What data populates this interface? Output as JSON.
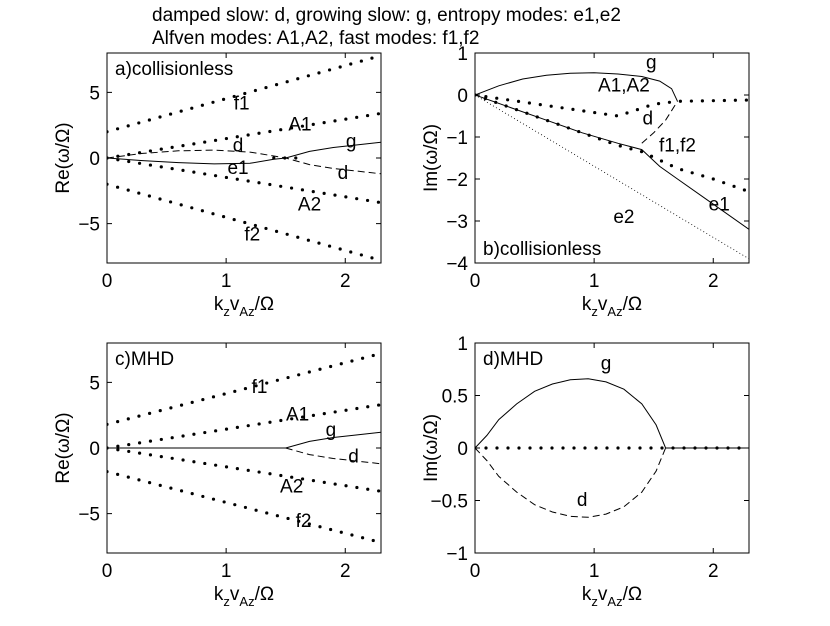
{
  "header": {
    "line1": "damped slow: d, growing slow: g, entropy modes: e1,e2",
    "line2": "Alfven modes: A1,A2, fast modes: f1,f2"
  },
  "chart_data": [
    {
      "type": "line",
      "title": "a)collisionless",
      "xlabel": "k_z v_Az/Ω",
      "ylabel": "Re(ω/Ω)",
      "xlim": [
        0,
        2.3
      ],
      "ylim": [
        -8,
        8
      ],
      "xticks": [
        "0",
        "1",
        "2"
      ],
      "yticks": [
        "5",
        "0",
        "−5"
      ],
      "series": [
        {
          "name": "f1",
          "style": "dotted",
          "x": [
            0,
            2.3
          ],
          "y": [
            2.0,
            7.8
          ]
        },
        {
          "name": "A1",
          "style": "dotted",
          "x": [
            0,
            2.3
          ],
          "y": [
            0.0,
            3.4
          ]
        },
        {
          "name": "A2",
          "style": "dotted",
          "x": [
            0,
            2.3
          ],
          "y": [
            0.0,
            -3.4
          ]
        },
        {
          "name": "f2",
          "style": "dotted",
          "x": [
            0,
            2.3
          ],
          "y": [
            -2.0,
            -7.8
          ]
        },
        {
          "name": "g",
          "style": "solid",
          "x": [
            1.5,
            1.7,
            1.9,
            2.1,
            2.3
          ],
          "y": [
            0.0,
            0.5,
            0.8,
            1.0,
            1.2
          ]
        },
        {
          "name": "d",
          "style": "dashed",
          "x": [
            0,
            0.3,
            0.6,
            0.9,
            1.2,
            1.4,
            1.5,
            1.7,
            1.9,
            2.1,
            2.3
          ],
          "y": [
            0.0,
            0.35,
            0.55,
            0.6,
            0.45,
            0.15,
            0.0,
            -0.5,
            -0.8,
            -1.0,
            -1.2
          ]
        },
        {
          "name": "e1",
          "style": "solid",
          "x": [
            0,
            0.3,
            0.6,
            0.9,
            1.2,
            1.4,
            1.5
          ],
          "y": [
            0.0,
            -0.2,
            -0.35,
            -0.45,
            -0.4,
            -0.1,
            0.0
          ]
        },
        {
          "name": "",
          "style": "dotted",
          "x": [
            1.4,
            1.5,
            1.6
          ],
          "y": [
            0.0,
            0.0,
            0.0
          ]
        }
      ],
      "annotations": [
        {
          "text": "f1",
          "x": 1.13,
          "y": 3.7
        },
        {
          "text": "A1",
          "x": 1.62,
          "y": 2.1
        },
        {
          "text": "d",
          "x": 1.1,
          "y": 0.5
        },
        {
          "text": "g",
          "x": 2.05,
          "y": 0.8
        },
        {
          "text": "e1",
          "x": 1.1,
          "y": -1.2
        },
        {
          "text": "d",
          "x": 1.98,
          "y": -1.6
        },
        {
          "text": "A2",
          "x": 1.7,
          "y": -4.0
        },
        {
          "text": "f2",
          "x": 1.22,
          "y": -6.3
        }
      ]
    },
    {
      "type": "line",
      "title": "b)collisionless",
      "xlabel": "k_z v_Az/Ω",
      "ylabel": "Im(ω/Ω)",
      "xlim": [
        0,
        2.3
      ],
      "ylim": [
        -4,
        1
      ],
      "xticks": [
        "0",
        "1",
        "2"
      ],
      "yticks": [
        "1",
        "0",
        "−1",
        "−2",
        "−3",
        "−4"
      ],
      "series": [
        {
          "name": "g",
          "style": "solid",
          "x": [
            0,
            0.2,
            0.4,
            0.6,
            0.8,
            1.0,
            1.2,
            1.4,
            1.55,
            1.65,
            1.7
          ],
          "y": [
            0.0,
            0.22,
            0.38,
            0.47,
            0.52,
            0.53,
            0.5,
            0.44,
            0.33,
            0.15,
            -0.15
          ]
        },
        {
          "name": "d",
          "style": "dashed",
          "x": [
            1.4,
            1.5,
            1.6,
            1.7
          ],
          "y": [
            -1.15,
            -0.9,
            -0.6,
            -0.15
          ]
        },
        {
          "name": "A1,A2",
          "style": "dotted",
          "x": [
            0,
            1.2,
            1.5,
            1.7,
            2.3
          ],
          "y": [
            0.0,
            -0.5,
            -0.22,
            -0.15,
            -0.12
          ]
        },
        {
          "name": "f1,f2",
          "style": "dotted",
          "x": [
            0,
            0.3,
            0.6,
            0.9,
            1.2,
            1.4,
            1.7,
            2.0,
            2.3
          ],
          "y": [
            0.0,
            -0.3,
            -0.6,
            -0.9,
            -1.2,
            -1.35,
            -1.75,
            -2.0,
            -2.3
          ]
        },
        {
          "name": "e1",
          "style": "solid",
          "x": [
            0,
            0.3,
            0.6,
            0.9,
            1.2,
            1.4,
            1.55,
            1.7,
            2.0,
            2.3
          ],
          "y": [
            0.0,
            -0.3,
            -0.6,
            -0.9,
            -1.15,
            -1.3,
            -1.7,
            -2.0,
            -2.6,
            -3.2
          ]
        },
        {
          "name": "e2",
          "style": "thin-dotted",
          "x": [
            0,
            2.3
          ],
          "y": [
            0.0,
            -3.9
          ]
        }
      ],
      "annotations": [
        {
          "text": "g",
          "x": 1.48,
          "y": 0.63
        },
        {
          "text": "A1,A2",
          "x": 1.25,
          "y": 0.08
        },
        {
          "text": "d",
          "x": 1.45,
          "y": -0.7
        },
        {
          "text": "f1,f2",
          "x": 1.7,
          "y": -1.35
        },
        {
          "text": "e1",
          "x": 2.05,
          "y": -2.75
        },
        {
          "text": "e2",
          "x": 1.25,
          "y": -3.05
        }
      ]
    },
    {
      "type": "line",
      "title": "c)MHD",
      "xlabel": "k_z v_Az/Ω",
      "ylabel": "Re(ω/Ω)",
      "xlim": [
        0,
        2.3
      ],
      "ylim": [
        -8,
        8
      ],
      "xticks": [
        "0",
        "1",
        "2"
      ],
      "yticks": [
        "5",
        "0",
        "−5"
      ],
      "series": [
        {
          "name": "f1",
          "style": "dotted",
          "x": [
            0,
            2.3
          ],
          "y": [
            1.8,
            7.2
          ]
        },
        {
          "name": "A1",
          "style": "dotted",
          "x": [
            0,
            2.3
          ],
          "y": [
            0.0,
            3.3
          ]
        },
        {
          "name": "A2",
          "style": "dotted",
          "x": [
            0,
            2.3
          ],
          "y": [
            0.0,
            -3.3
          ]
        },
        {
          "name": "f2",
          "style": "dotted",
          "x": [
            0,
            2.3
          ],
          "y": [
            -1.8,
            -7.2
          ]
        },
        {
          "name": "g",
          "style": "solid",
          "x": [
            0,
            1.5,
            1.7,
            1.9,
            2.1,
            2.3
          ],
          "y": [
            0.0,
            0.0,
            0.5,
            0.8,
            1.0,
            1.2
          ]
        },
        {
          "name": "d",
          "style": "dashed",
          "x": [
            1.5,
            1.7,
            1.9,
            2.1,
            2.3
          ],
          "y": [
            0.0,
            -0.5,
            -0.8,
            -1.0,
            -1.2
          ]
        }
      ],
      "annotations": [
        {
          "text": "f1",
          "x": 1.28,
          "y": 4.2
        },
        {
          "text": "A1",
          "x": 1.6,
          "y": 2.1
        },
        {
          "text": "g",
          "x": 1.88,
          "y": 0.9
        },
        {
          "text": "d",
          "x": 2.07,
          "y": -1.1
        },
        {
          "text": "A2",
          "x": 1.55,
          "y": -3.4
        },
        {
          "text": "f2",
          "x": 1.65,
          "y": -6.0
        }
      ]
    },
    {
      "type": "line",
      "title": "d)MHD",
      "xlabel": "k_z v_Az/Ω",
      "ylabel": "Im(ω/Ω)",
      "xlim": [
        0,
        2.3
      ],
      "ylim": [
        -1,
        1
      ],
      "xticks": [
        "0",
        "1",
        "2"
      ],
      "yticks": [
        "1",
        "0.5",
        "0",
        "−0.5",
        "−1"
      ],
      "series": [
        {
          "name": "g",
          "style": "solid",
          "x": [
            0,
            0.1,
            0.2,
            0.35,
            0.5,
            0.65,
            0.8,
            0.95,
            1.1,
            1.25,
            1.4,
            1.52,
            1.6,
            2.3
          ],
          "y": [
            0.0,
            0.12,
            0.27,
            0.42,
            0.54,
            0.61,
            0.65,
            0.66,
            0.63,
            0.56,
            0.42,
            0.22,
            0.0,
            0.0
          ]
        },
        {
          "name": "d",
          "style": "dashed",
          "x": [
            0,
            0.1,
            0.2,
            0.35,
            0.5,
            0.65,
            0.8,
            0.95,
            1.1,
            1.25,
            1.4,
            1.52,
            1.6
          ],
          "y": [
            0.0,
            -0.12,
            -0.27,
            -0.42,
            -0.54,
            -0.61,
            -0.65,
            -0.66,
            -0.63,
            -0.56,
            -0.42,
            -0.22,
            0.0
          ]
        },
        {
          "name": "",
          "style": "dotted",
          "x": [
            0,
            2.3
          ],
          "y": [
            0.0,
            0.0
          ]
        }
      ],
      "annotations": [
        {
          "text": "g",
          "x": 1.1,
          "y": 0.75
        },
        {
          "text": "d",
          "x": 0.9,
          "y": -0.55
        }
      ]
    }
  ]
}
